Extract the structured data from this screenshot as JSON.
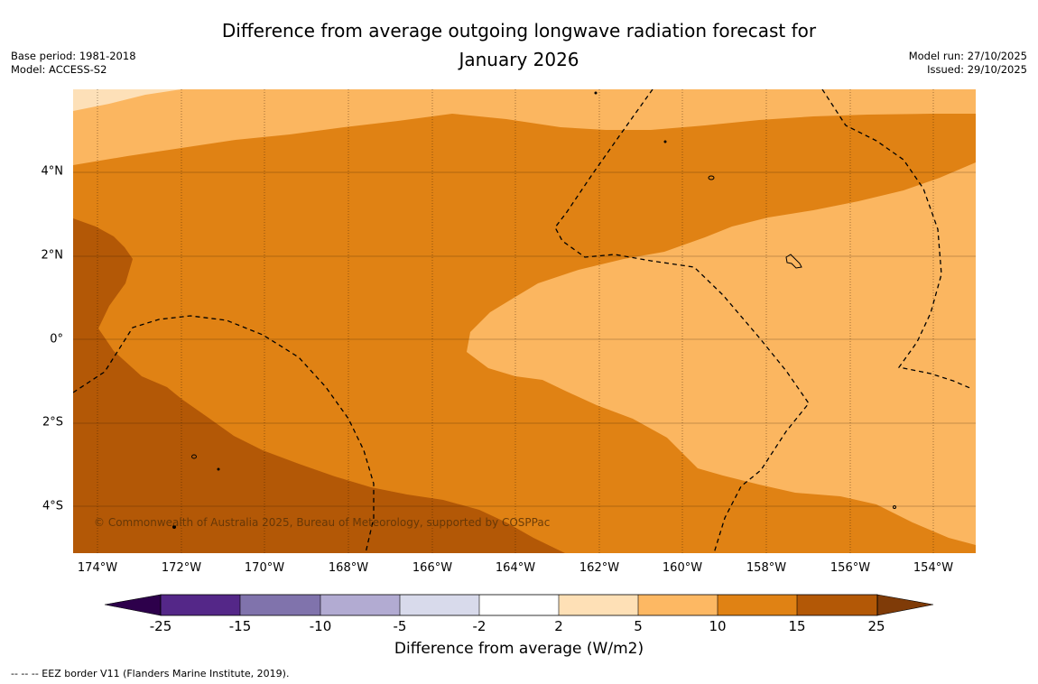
{
  "title": {
    "line1": "Difference from average outgoing longwave radiation forecast for",
    "line2": "January 2026"
  },
  "meta": {
    "base_period": "Base period: 1981-2018",
    "model": "Model: ACCESS-S2",
    "model_run": "Model run: 27/10/2025",
    "issued": "Issued: 29/10/2025"
  },
  "map": {
    "lat_labels": [
      "4°N",
      "2°N",
      "0°",
      "2°S",
      "4°S"
    ],
    "lon_labels": [
      "174°W",
      "172°W",
      "170°W",
      "168°W",
      "166°W",
      "164°W",
      "162°W",
      "160°W",
      "158°W",
      "156°W",
      "154°W"
    ],
    "copyright": "© Commonwealth of Australia 2025, Bureau of Meteorology, supported by COSPPac",
    "colors": {
      "band_2_5": "#fde0b8",
      "band_5_10": "#fbb660",
      "band_10_15": "#e08214",
      "band_15_25": "#b35806"
    }
  },
  "colorbar": {
    "ticks": [
      "-25",
      "-15",
      "-10",
      "-5",
      "-2",
      "2",
      "5",
      "10",
      "15",
      "25"
    ],
    "colors": [
      "#2d004b",
      "#542788",
      "#8073ac",
      "#b2abd2",
      "#d8daeb",
      "#ffffff",
      "#fee0b6",
      "#fdb863",
      "#e08214",
      "#b35806",
      "#7f3b08"
    ],
    "label": "Difference from average (W/m2)"
  },
  "footnote": "--  --  -- EEZ border V11 (Flanders Marine Institute, 2019)."
}
